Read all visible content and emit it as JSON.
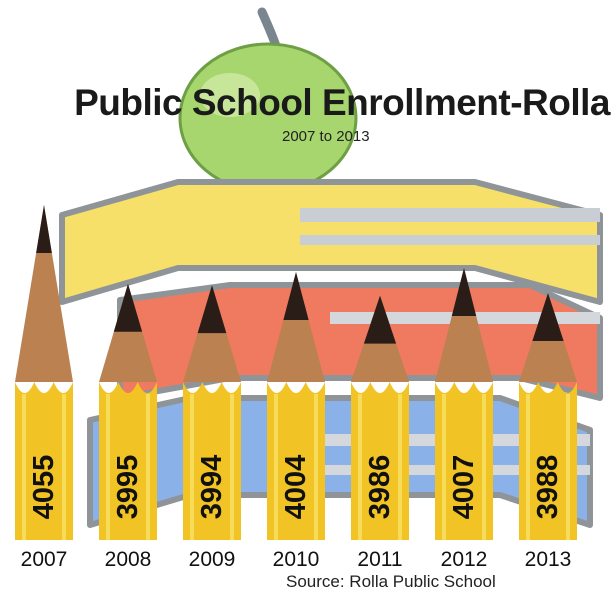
{
  "chart_data": {
    "type": "bar",
    "title": "Public School Enrollment-Rolla",
    "subtitle": "2007 to 2013",
    "source": "Source: Rolla Public School",
    "categories": [
      "2007",
      "2008",
      "2009",
      "2010",
      "2011",
      "2012",
      "2013"
    ],
    "values": [
      4055,
      3995,
      3994,
      4004,
      3986,
      4007,
      3988
    ],
    "value_labels": [
      "4055",
      "3995",
      "3994",
      "4004",
      "3986",
      "4007",
      "3988"
    ],
    "mark_style": "pencils",
    "colors": {
      "pencil_body": "#f1c324",
      "pencil_stripe": "#f7dc5a",
      "pencil_wood": "#bb8150",
      "pencil_lead": "#2a1d18",
      "label_text": "#111111",
      "apple": "#a6d66d",
      "book_yellow": "#f6e06a",
      "book_red": "#f07a5f",
      "book_blue": "#8bb2e8",
      "book_outline": "#8f9499"
    }
  }
}
